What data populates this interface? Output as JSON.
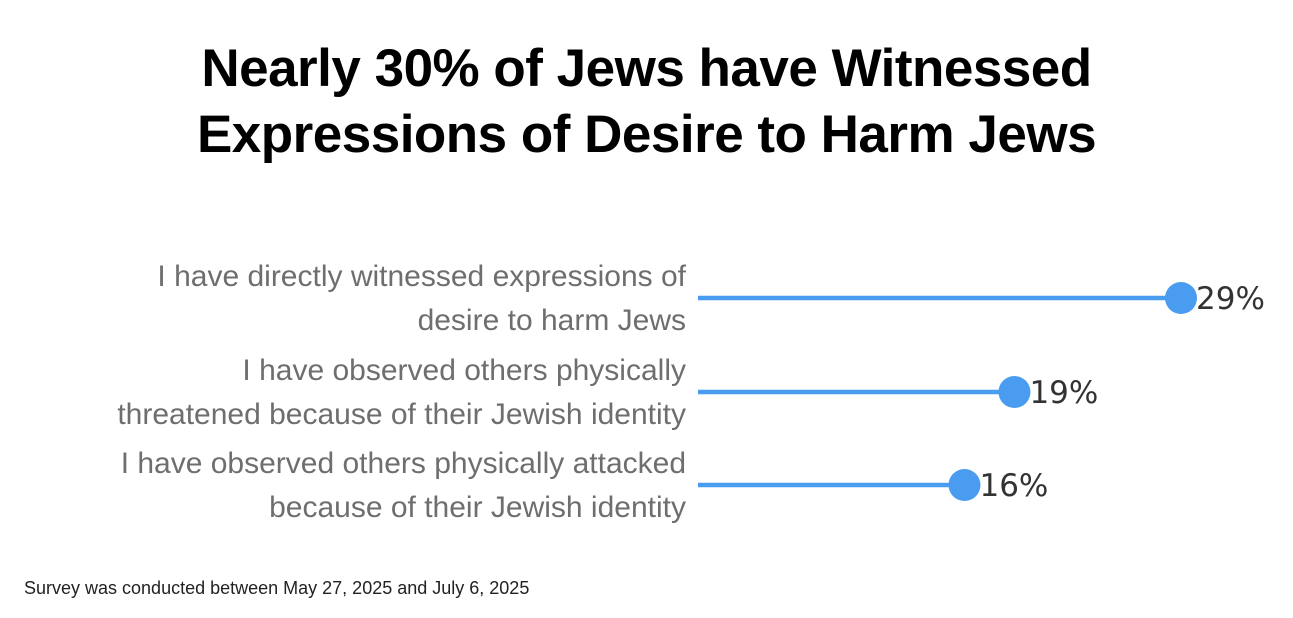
{
  "title": {
    "line1": "Nearly 30% of Jews have Witnessed",
    "line2": "Expressions of Desire to Harm Jews"
  },
  "footnote": "Survey was conducted between May 27, 2025 and July 6, 2025",
  "colors": {
    "line": "#4a9cf0",
    "dot": "#4a9cf0",
    "label": "#6e6e6e",
    "value": "#333333"
  },
  "chart_data": {
    "type": "bar",
    "style": "lollipop",
    "categories": [
      [
        "I have directly witnessed expressions of",
        "desire to harm Jews"
      ],
      [
        "I have observed others physically",
        "threatened because of their Jewish identity"
      ],
      [
        "I have observed others physically attacked",
        "because of their Jewish identity"
      ]
    ],
    "values": [
      29,
      19,
      16
    ],
    "value_labels": [
      "29%",
      "19%",
      "16%"
    ],
    "unit": "%",
    "xlim": [
      0,
      29
    ],
    "grid": false,
    "legend": "none"
  }
}
